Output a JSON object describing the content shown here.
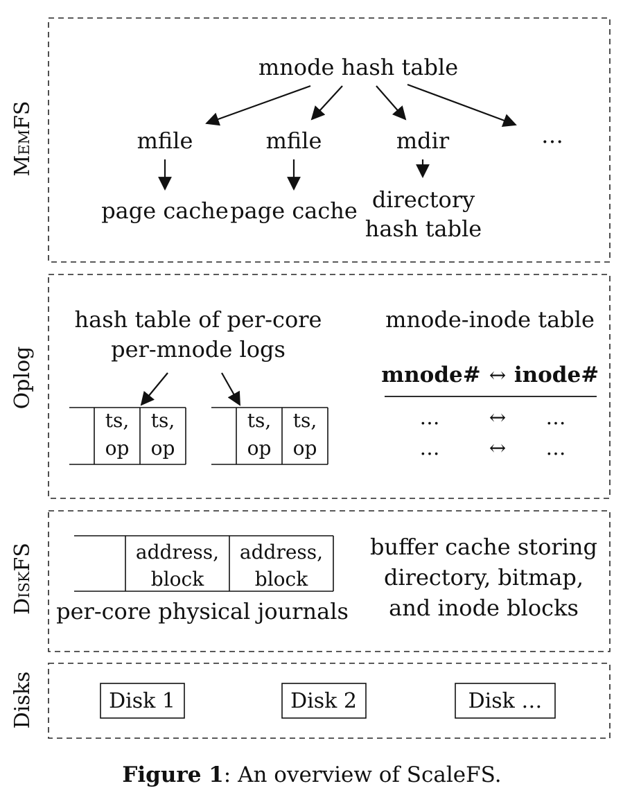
{
  "sections": {
    "memfs": {
      "label": "MemFS",
      "hash_table": "mnode hash table",
      "nodes": [
        "mfile",
        "mfile",
        "mdir",
        "…"
      ],
      "children": [
        "page cache",
        "page cache",
        "directory",
        "hash table"
      ]
    },
    "oplog": {
      "label": "Oplog",
      "logs_title_line1": "hash table of per-core",
      "logs_title_line2": "per-mnode logs",
      "cell_line1": "ts,",
      "cell_line2": "op",
      "table_title": "mnode-inode table",
      "table_header_left": "mnode#",
      "table_header_arrow": "↔",
      "table_header_right": "inode#",
      "row_ellipsis": "…",
      "row_arrow": "↔"
    },
    "diskfs": {
      "label": "DiskFS",
      "cell_line1": "address,",
      "cell_line2": "block",
      "journals_caption": "per-core physical journals",
      "buffer_line1": "buffer cache storing",
      "buffer_line2": "directory, bitmap,",
      "buffer_line3": "and inode blocks"
    },
    "disks": {
      "label": "Disks",
      "items": [
        "Disk 1",
        "Disk 2",
        "Disk …"
      ]
    }
  },
  "caption": {
    "figure": "Figure 1",
    "text": ": An overview of ScaleFS."
  }
}
